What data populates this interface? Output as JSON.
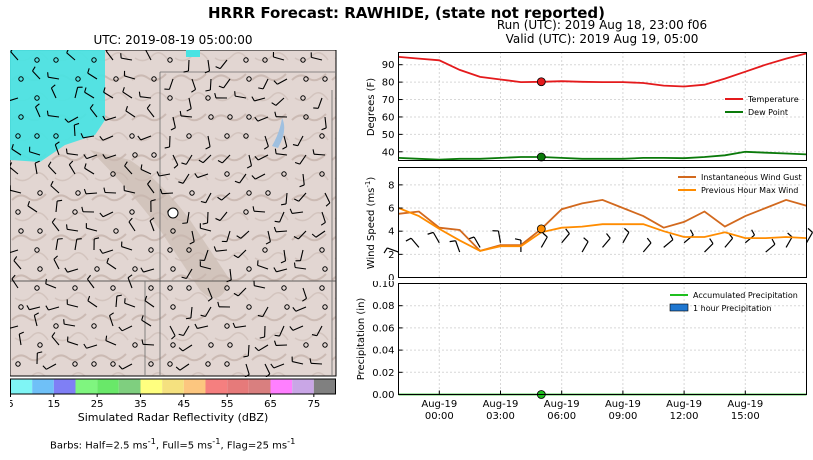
{
  "title": "HRRR Forecast: RAWHIDE, (state not reported)",
  "map": {
    "title": "UTC: 2019-08-19 05:00:00",
    "colorbar_label": "Simulated Radar Reflectivity (dBZ)",
    "colorbar_ticks": [
      "5",
      "15",
      "25",
      "35",
      "45",
      "55",
      "65",
      "75"
    ],
    "colorbar_colors": [
      "#7ff5f5",
      "#6fc0f7",
      "#7f7ff5",
      "#7ff57f",
      "#69e869",
      "#7fcf7f",
      "#ffff7f",
      "#f5e17f",
      "#fcc67f",
      "#f57f7f",
      "#e67a7a",
      "#d97f7f",
      "#ff7fff",
      "#c9a6e6",
      "#808080"
    ],
    "barbs_note_prefix": "Barbs: Half=2.5 ms",
    "barbs_note_mid1": ", Full=5 ms",
    "barbs_note_mid2": ", Flag=25 ms",
    "barbs_sup": "-1"
  },
  "run": {
    "line1": "Run (UTC): 2019 Aug 18, 23:00 f06",
    "line2": "Valid (UTC): 2019 Aug 19, 05:00"
  },
  "chart_data": [
    {
      "type": "line",
      "ylabel": "Degrees (F)",
      "ylim": [
        35,
        97
      ],
      "yticks": [
        "40",
        "50",
        "60",
        "70",
        "80",
        "90"
      ],
      "grid": true,
      "legend_position": "right",
      "x_hours": [
        -2,
        -1,
        0,
        1,
        2,
        3,
        4,
        5,
        6,
        7,
        8,
        9,
        10,
        11,
        12,
        13,
        14,
        15,
        16,
        17,
        18
      ],
      "series": [
        {
          "name": "Temperature",
          "color": "#e41a1c",
          "values": [
            94.5,
            93.5,
            92.5,
            87,
            83,
            81.5,
            80,
            80.2,
            80.5,
            80.2,
            80,
            80,
            79.5,
            78,
            77.5,
            78.5,
            82,
            86,
            90,
            93.5,
            96.5
          ]
        },
        {
          "name": "Dew Point",
          "color": "#0a7a0a",
          "values": [
            36.5,
            36,
            35.5,
            36,
            36,
            36.5,
            37,
            37,
            36.5,
            36,
            36,
            36,
            36.5,
            36.5,
            36.3,
            37,
            38,
            40,
            39.5,
            39,
            38.5
          ]
        }
      ],
      "highlight_x": 5
    },
    {
      "type": "line",
      "ylabel": "Wind Speed (ms",
      "ylabel_sup": "-1",
      "ylabel_close": ")",
      "ylim": [
        0,
        9.5
      ],
      "yticks": [
        "0",
        "2",
        "4",
        "6",
        "8"
      ],
      "grid": true,
      "legend_position": "top-right",
      "x_hours": [
        -2,
        -1,
        0,
        1,
        2,
        3,
        4,
        5,
        6,
        7,
        8,
        9,
        10,
        11,
        12,
        13,
        14,
        15,
        16,
        17,
        18
      ],
      "series": [
        {
          "name": "Instantaneous Wind Gust",
          "color": "#d2691e",
          "values": [
            5.5,
            5.7,
            4.3,
            4.1,
            2.3,
            2.8,
            2.8,
            4.2,
            5.9,
            6.4,
            6.7,
            6.0,
            5.3,
            4.3,
            4.8,
            5.7,
            4.4,
            5.3,
            6.0,
            6.7,
            6.2
          ]
        },
        {
          "name": "Previous Hour Max Wind",
          "color": "#ff8c00",
          "values": [
            6.0,
            5.3,
            4.2,
            3.2,
            2.3,
            2.7,
            2.7,
            3.9,
            4.3,
            4.4,
            4.6,
            4.6,
            4.6,
            4.0,
            3.5,
            3.5,
            3.9,
            3.4,
            3.4,
            3.5,
            3.4
          ]
        }
      ],
      "highlight_x": 5
    },
    {
      "type": "bar",
      "ylabel": "Precipitation (in)",
      "ylim": [
        0,
        0.1
      ],
      "yticks": [
        "0.00",
        "0.02",
        "0.04",
        "0.06",
        "0.08",
        "0.10"
      ],
      "grid": true,
      "legend_position": "top-right",
      "x_hours": [
        -2,
        -1,
        0,
        1,
        2,
        3,
        4,
        5,
        6,
        7,
        8,
        9,
        10,
        11,
        12,
        13,
        14,
        15,
        16,
        17,
        18
      ],
      "series": [
        {
          "name": "Accumulated Precipitation",
          "color": "#1fbf1f",
          "values": [
            0,
            0,
            0,
            0,
            0,
            0,
            0,
            0,
            0,
            0,
            0,
            0,
            0,
            0,
            0,
            0,
            0,
            0,
            0,
            0,
            0
          ]
        },
        {
          "name": "1 hour Precipitation",
          "color": "#1f77d0",
          "values": [
            0,
            0,
            0,
            0,
            0,
            0,
            0,
            0,
            0,
            0,
            0,
            0,
            0,
            0,
            0,
            0,
            0,
            0,
            0,
            0,
            0
          ]
        }
      ],
      "highlight_x": 5,
      "xticks": [
        {
          "line1": "Aug-19",
          "line2": "00:00"
        },
        {
          "line1": "Aug-19",
          "line2": "03:00"
        },
        {
          "line1": "Aug-19",
          "line2": "06:00"
        },
        {
          "line1": "Aug-19",
          "line2": "09:00"
        },
        {
          "line1": "Aug-19",
          "line2": "12:00"
        },
        {
          "line1": "Aug-19",
          "line2": "15:00"
        }
      ]
    }
  ]
}
